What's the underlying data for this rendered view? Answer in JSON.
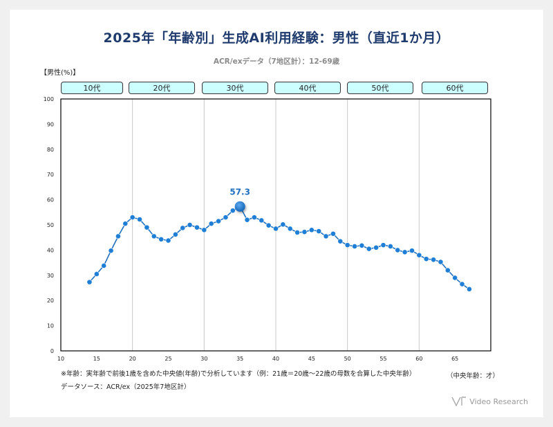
{
  "page": {
    "title": "2025年「年齢別」生成AI利用経験：男性（直近1か月）",
    "subtitle": "ACR/exデータ（7地区計）：12-69歳",
    "y_unit_label": "【男性(%)】",
    "footnote": "※年齢：実年齢で前後1歳を含めた中央値(年齢)で分析しています（例：21歳＝20歳～22歳の母数を合算した中央年齢）",
    "x_unit_label": "（中央年齢：才）",
    "source": "データソース：ACR/ex（2025年7地区計）",
    "brand": "Video Research",
    "age_groups": [
      "10代",
      "20代",
      "30代",
      "40代",
      "50代",
      "60代"
    ]
  },
  "colors": {
    "line": "#1f6fbf",
    "marker": "#1f7ed6",
    "highlight_label": "#1f6fbf",
    "age_box_fill": "#ccffff",
    "title": "#1f3b6e"
  },
  "chart_data": {
    "type": "line",
    "xlim": [
      10,
      70
    ],
    "ylim": [
      0,
      100
    ],
    "x_ticks": [
      10,
      15,
      20,
      25,
      30,
      35,
      40,
      45,
      50,
      55,
      60,
      65
    ],
    "y_ticks": [
      0,
      10,
      20,
      30,
      40,
      50,
      60,
      70,
      80,
      90,
      100
    ],
    "x_group_boundaries": [
      20,
      30,
      40,
      50,
      60
    ],
    "grid": "vertical boundaries only",
    "series": [
      {
        "x": [
          14,
          15,
          16,
          17,
          18,
          19,
          20,
          21,
          22,
          23,
          24,
          25,
          26,
          27,
          28,
          29,
          30,
          31,
          32,
          33,
          34,
          35,
          36,
          37,
          38,
          39,
          40,
          41,
          42,
          43,
          44,
          45,
          46,
          47,
          48,
          49,
          50,
          51,
          52,
          53,
          54,
          55,
          56,
          57,
          58,
          59,
          60,
          61,
          62,
          63,
          64,
          65,
          66,
          67
        ],
        "y": [
          27.3,
          30.5,
          33.8,
          39.8,
          45.5,
          50.5,
          53.0,
          52.2,
          49.0,
          45.5,
          44.3,
          43.8,
          46.2,
          48.8,
          50.0,
          49.0,
          48.0,
          50.5,
          51.5,
          53.0,
          55.7,
          57.3,
          52.0,
          53.0,
          51.8,
          49.8,
          48.5,
          50.2,
          48.5,
          47.0,
          47.2,
          48.0,
          47.5,
          45.5,
          46.5,
          43.5,
          42.0,
          41.5,
          41.8,
          40.5,
          41.0,
          42.0,
          41.5,
          40.0,
          39.2,
          39.8,
          38.0,
          36.5,
          36.2,
          35.3,
          32.0,
          29.0,
          26.5,
          24.5
        ]
      }
    ],
    "highlight": {
      "x": 35,
      "y": 57.3,
      "label": "57.3"
    }
  }
}
